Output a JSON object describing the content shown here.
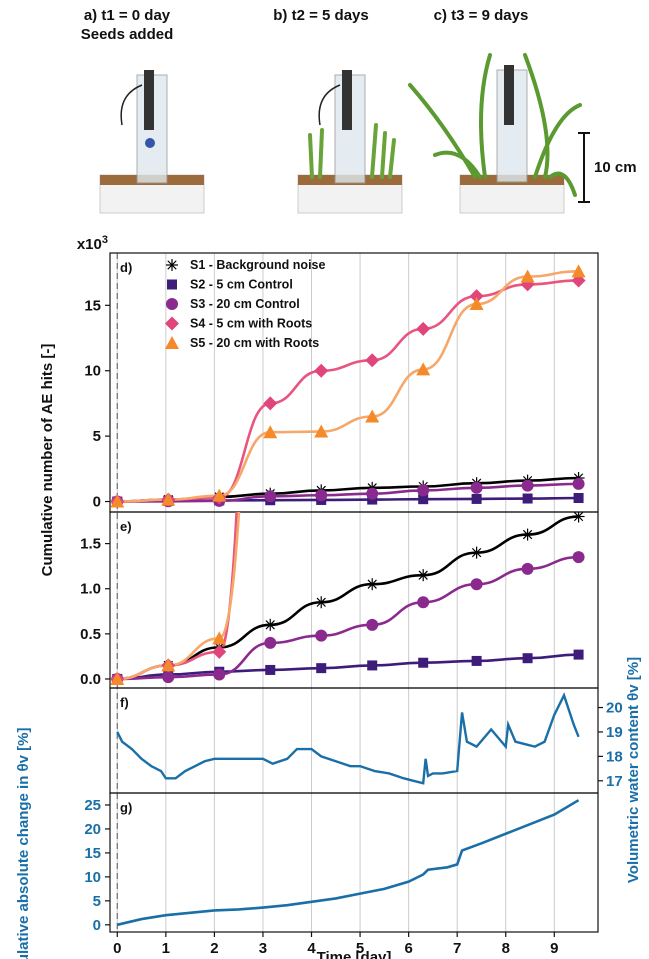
{
  "photos": {
    "caption_a_line1": "a) t1 = 0 day",
    "caption_a_line2": "Seeds added",
    "caption_b": "b) t2 = 5 days",
    "caption_c": "c) t3 = 9 days",
    "scale_label": "10 cm"
  },
  "colors": {
    "s1": "#000000",
    "s2": "#3d1c7a",
    "s3": "#8b2a8e",
    "s4": "#e0457b",
    "s5": "#f58a2a",
    "s4_line": "#e8557f",
    "s5_line": "#f6a76a",
    "water": "#1a6fa8",
    "grid": "#cccccc"
  },
  "chart_data": [
    {
      "panel": "d)",
      "type": "line",
      "multiplier": "x10",
      "multiplier_exp": "3",
      "ylabel": "Cumulative number of AE hits [-]",
      "ylim": [
        -0.8,
        19
      ],
      "yticks": [
        "0",
        "5",
        "10",
        "15"
      ],
      "ytick_values": [
        0,
        5,
        10,
        15
      ],
      "legend": [
        "S1 - Background noise",
        "S2 - 5 cm Control",
        "S3 - 20 cm Control",
        "S4 - 5 cm with Roots",
        "S5 - 20 cm with Roots"
      ],
      "series": [
        {
          "name": "S1 - Background noise",
          "marker": "asterisk",
          "x": [
            0,
            1.05,
            2.1,
            3.15,
            4.2,
            5.25,
            6.3,
            7.4,
            8.45,
            9.5
          ],
          "y": [
            0,
            0.15,
            0.35,
            0.6,
            0.85,
            1.05,
            1.15,
            1.4,
            1.6,
            1.8
          ]
        },
        {
          "name": "S2 - 5 cm Control",
          "marker": "square",
          "x": [
            0,
            1.05,
            2.1,
            3.15,
            4.2,
            5.25,
            6.3,
            7.4,
            8.45,
            9.5
          ],
          "y": [
            0,
            0.05,
            0.08,
            0.1,
            0.12,
            0.15,
            0.18,
            0.2,
            0.23,
            0.27
          ]
        },
        {
          "name": "S3 - 20 cm Control",
          "marker": "circle",
          "x": [
            0,
            1.05,
            2.1,
            3.15,
            4.2,
            5.25,
            6.3,
            7.4,
            8.45,
            9.5
          ],
          "y": [
            0,
            0.02,
            0.05,
            0.4,
            0.48,
            0.6,
            0.85,
            1.05,
            1.22,
            1.35
          ]
        },
        {
          "name": "S4 - 5 cm with Roots",
          "marker": "diamond",
          "x": [
            0,
            1.05,
            2.1,
            3.15,
            4.2,
            5.25,
            6.3,
            7.4,
            8.45,
            9.5
          ],
          "y": [
            0,
            0.15,
            0.3,
            7.5,
            10,
            10.8,
            13.2,
            15.7,
            16.6,
            16.9
          ]
        },
        {
          "name": "S5 - 20 cm with Roots",
          "marker": "triangle",
          "x": [
            0,
            1.05,
            2.1,
            3.15,
            4.2,
            5.25,
            6.3,
            7.4,
            8.45,
            9.5
          ],
          "y": [
            0,
            0.15,
            0.45,
            5.3,
            5.35,
            6.5,
            10.1,
            15.1,
            17.2,
            17.6
          ]
        }
      ]
    },
    {
      "panel": "e)",
      "type": "line",
      "ylim": [
        -0.1,
        1.85
      ],
      "yticks": [
        "0.0",
        "0.5",
        "1.0",
        "1.5"
      ],
      "ytick_values": [
        0,
        0.5,
        1.0,
        1.5
      ],
      "series_ref": "same series as panel d), zoomed"
    },
    {
      "panel": "f)",
      "type": "line",
      "ylabel_right": "Volumetric water content θv [%]",
      "ylim": [
        16.5,
        20.8
      ],
      "yticks": [
        "17",
        "18",
        "19",
        "20"
      ],
      "ytick_values": [
        17,
        18,
        19,
        20
      ],
      "x": [
        0,
        0.1,
        0.3,
        0.5,
        0.7,
        0.9,
        1.0,
        1.2,
        1.4,
        1.6,
        1.8,
        2.0,
        2.2,
        2.5,
        2.8,
        3.0,
        3.2,
        3.5,
        3.7,
        4.0,
        4.2,
        4.5,
        4.8,
        5.0,
        5.3,
        5.6,
        5.9,
        6.1,
        6.3,
        6.35,
        6.4,
        6.5,
        6.7,
        7.0,
        7.1,
        7.2,
        7.4,
        7.7,
        8.0,
        8.05,
        8.2,
        8.4,
        8.6,
        8.8,
        9.0,
        9.2,
        9.3,
        9.4,
        9.5
      ],
      "y": [
        19.0,
        18.6,
        18.3,
        17.9,
        17.6,
        17.4,
        17.1,
        17.1,
        17.4,
        17.6,
        17.8,
        17.9,
        17.9,
        17.9,
        17.9,
        17.9,
        17.7,
        17.9,
        18.3,
        18.3,
        18.0,
        17.8,
        17.6,
        17.6,
        17.4,
        17.3,
        17.1,
        17.0,
        16.9,
        17.9,
        17.2,
        17.3,
        17.3,
        17.4,
        19.8,
        18.6,
        18.4,
        19.1,
        18.4,
        19.3,
        18.6,
        18.5,
        18.4,
        18.6,
        19.7,
        20.5,
        19.9,
        19.3,
        18.8
      ]
    },
    {
      "panel": "g)",
      "type": "line",
      "ylabel": "Cumulative absolute change in θv [%]",
      "xlabel": "Time [day]",
      "xlim": [
        -0.15,
        9.9
      ],
      "xticks": [
        "0",
        "1",
        "2",
        "3",
        "4",
        "5",
        "6",
        "7",
        "8",
        "9"
      ],
      "xtick_values": [
        0,
        1,
        2,
        3,
        4,
        5,
        6,
        7,
        8,
        9
      ],
      "ylim": [
        -1.5,
        27.5
      ],
      "yticks": [
        "0",
        "5",
        "10",
        "15",
        "20",
        "25"
      ],
      "ytick_values": [
        0,
        5,
        10,
        15,
        20,
        25
      ],
      "x": [
        0,
        0.5,
        1,
        1.5,
        2,
        2.5,
        3,
        3.5,
        4,
        4.5,
        5,
        5.5,
        6,
        6.3,
        6.4,
        6.8,
        7.0,
        7.1,
        7.5,
        8,
        8.5,
        9,
        9.5
      ],
      "y": [
        0,
        1.2,
        2,
        2.5,
        3,
        3.2,
        3.6,
        4.1,
        4.8,
        5.5,
        6.5,
        7.5,
        9,
        10.5,
        11.5,
        12,
        12.6,
        15.5,
        17,
        19,
        21,
        23,
        26
      ]
    }
  ]
}
